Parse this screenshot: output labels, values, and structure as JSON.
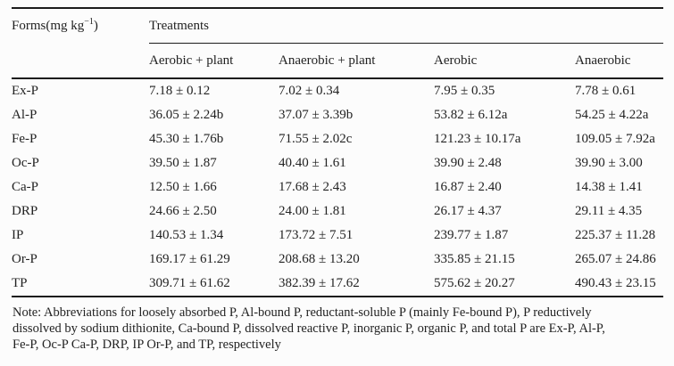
{
  "table": {
    "header": {
      "forms_label_prefix": "Forms(mg kg",
      "forms_label_sup": "−1",
      "forms_label_suffix": ")",
      "treatments_label": "Treatments",
      "columns": [
        "Aerobic + plant",
        "Anaerobic + plant",
        "Aerobic",
        "Anaerobic"
      ]
    },
    "rows": [
      {
        "label": "Ex-P",
        "values": [
          "7.18 ± 0.12",
          "7.02 ± 0.34",
          "7.95 ± 0.35",
          "7.78 ± 0.61"
        ]
      },
      {
        "label": "Al-P",
        "values": [
          "36.05 ± 2.24b",
          "37.07 ± 3.39b",
          "53.82 ± 6.12a",
          "54.25 ± 4.22a"
        ]
      },
      {
        "label": "Fe-P",
        "values": [
          "45.30 ± 1.76b",
          "71.55 ± 2.02c",
          "121.23 ± 10.17a",
          "109.05 ± 7.92a"
        ]
      },
      {
        "label": "Oc-P",
        "values": [
          "39.50 ± 1.87",
          "40.40 ± 1.61",
          "39.90 ± 2.48",
          "39.90 ± 3.00"
        ]
      },
      {
        "label": "Ca-P",
        "values": [
          "12.50 ± 1.66",
          "17.68 ± 2.43",
          "16.87 ± 2.40",
          "14.38 ± 1.41"
        ]
      },
      {
        "label": "DRP",
        "values": [
          "24.66 ± 2.50",
          "24.00 ± 1.81",
          "26.17 ± 4.37",
          "29.11 ± 4.35"
        ]
      },
      {
        "label": "IP",
        "values": [
          "140.53 ± 1.34",
          "173.72 ± 7.51",
          "239.77 ± 1.87",
          "225.37 ± 11.28"
        ]
      },
      {
        "label": "Or-P",
        "values": [
          "169.17 ± 61.29",
          "208.68 ± 13.20",
          "335.85 ± 21.15",
          "265.07 ± 24.86"
        ]
      },
      {
        "label": "TP",
        "values": [
          "309.71 ± 61.62",
          "382.39 ± 17.62",
          "575.62 ± 20.27",
          "490.43 ± 23.15"
        ]
      }
    ]
  },
  "note": {
    "lines": [
      "Note: Abbreviations for loosely absorbed P, Al-bound P, reductant-soluble P (mainly Fe-bound P), P reductively",
      "dissolved by sodium dithionite, Ca-bound P, dissolved reactive P, inorganic P, organic P, and total P are Ex-P, Al-P,",
      "Fe-P, Oc-P Ca-P, DRP, IP Or-P, and TP, respectively"
    ]
  },
  "colors": {
    "text": "#222222",
    "rule": "#1c1c1c",
    "background": "#fcfcfc"
  }
}
